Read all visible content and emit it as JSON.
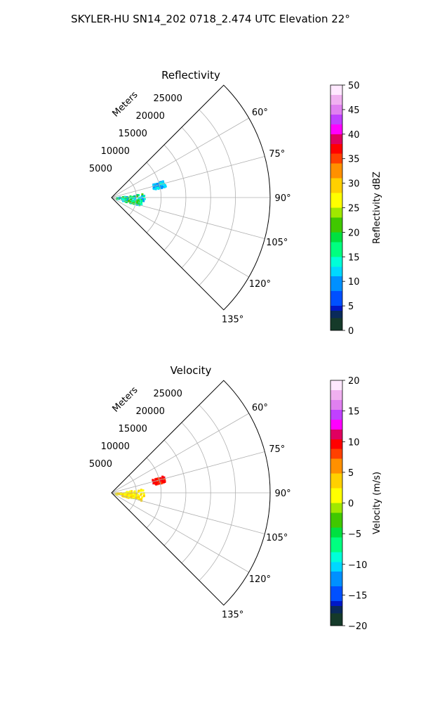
{
  "figure": {
    "suptitle": "SKYLER-HU  SN14_202  0718_2.474 UTC Elevation 22°"
  },
  "chart_data": [
    {
      "type": "polar-sector",
      "title": "Reflectivity",
      "radial_axis_label": "Meters",
      "radial_ticks": [
        5000,
        10000,
        15000,
        20000,
        25000
      ],
      "radial_tick_labels": [
        "5000",
        "10000",
        "15000",
        "20000",
        "25000"
      ],
      "radial_range": [
        0,
        32000
      ],
      "theta_range_deg": [
        45,
        135
      ],
      "theta_ticks_deg": [
        60,
        75,
        90,
        105,
        120,
        135
      ],
      "theta_tick_labels": [
        "60°",
        "75°",
        "90°",
        "105°",
        "120°",
        "135°"
      ],
      "grid": true,
      "colorbar": {
        "label": "Reflectivity dBZ",
        "min": 0,
        "max": 50,
        "ticks": [
          0,
          5,
          10,
          15,
          20,
          25,
          30,
          35,
          40,
          45,
          50
        ],
        "tick_labels": [
          "0",
          "5",
          "10",
          "15",
          "20",
          "25",
          "30",
          "35",
          "40",
          "45",
          "50"
        ],
        "stops": [
          [
            0,
            "#000a4a"
          ],
          [
            0.05,
            "#153a2a"
          ],
          [
            0.08,
            "#0a2a5a"
          ],
          [
            0.1,
            "#0018c8"
          ],
          [
            0.16,
            "#0050ff"
          ],
          [
            0.22,
            "#0090ff"
          ],
          [
            0.26,
            "#00d8ff"
          ],
          [
            0.3,
            "#00ffd8"
          ],
          [
            0.36,
            "#00ff80"
          ],
          [
            0.4,
            "#00e040"
          ],
          [
            0.46,
            "#40c800"
          ],
          [
            0.5,
            "#a0e800"
          ],
          [
            0.56,
            "#ffff00"
          ],
          [
            0.62,
            "#ffd000"
          ],
          [
            0.68,
            "#ff9000"
          ],
          [
            0.72,
            "#ff4000"
          ],
          [
            0.76,
            "#ff0000"
          ],
          [
            0.8,
            "#e00060"
          ],
          [
            0.84,
            "#ff00ff"
          ],
          [
            0.88,
            "#c040ff"
          ],
          [
            0.92,
            "#e080f0"
          ],
          [
            0.96,
            "#f0b0f0"
          ],
          [
            1.0,
            "#ffe8ff"
          ]
        ]
      },
      "echo_regions": [
        {
          "r_range": [
            8500,
            11000
          ],
          "theta_range_deg": [
            71,
            78
          ],
          "value_range": [
            10,
            14
          ]
        },
        {
          "r_range": [
            600,
            6500
          ],
          "theta_range_deg": [
            82,
            96
          ],
          "value_range": [
            8,
            22
          ]
        },
        {
          "r_range": [
            2000,
            6000
          ],
          "theta_range_deg": [
            94,
            104
          ],
          "value_range": [
            10,
            22
          ]
        }
      ]
    },
    {
      "type": "polar-sector",
      "title": "Velocity",
      "radial_axis_label": "Meters",
      "radial_ticks": [
        5000,
        10000,
        15000,
        20000,
        25000
      ],
      "radial_tick_labels": [
        "5000",
        "10000",
        "15000",
        "20000",
        "25000"
      ],
      "radial_range": [
        0,
        32000
      ],
      "theta_range_deg": [
        45,
        135
      ],
      "theta_ticks_deg": [
        60,
        75,
        90,
        105,
        120,
        135
      ],
      "theta_tick_labels": [
        "60°",
        "75°",
        "90°",
        "105°",
        "120°",
        "135°"
      ],
      "grid": true,
      "colorbar": {
        "label": "Velocity (m/s)",
        "min": -20,
        "max": 20,
        "ticks": [
          -20,
          -15,
          -10,
          -5,
          0,
          5,
          10,
          15,
          20
        ],
        "tick_labels": [
          "−20",
          "−15",
          "−10",
          "−5",
          "0",
          "5",
          "10",
          "15",
          "20"
        ],
        "stops": [
          [
            0,
            "#000a4a"
          ],
          [
            0.05,
            "#153a2a"
          ],
          [
            0.08,
            "#0a2a5a"
          ],
          [
            0.1,
            "#0018c8"
          ],
          [
            0.16,
            "#0050ff"
          ],
          [
            0.22,
            "#0090ff"
          ],
          [
            0.26,
            "#00d8ff"
          ],
          [
            0.3,
            "#00ffd8"
          ],
          [
            0.36,
            "#00ff80"
          ],
          [
            0.4,
            "#00e040"
          ],
          [
            0.46,
            "#40c800"
          ],
          [
            0.5,
            "#a0e800"
          ],
          [
            0.56,
            "#ffff00"
          ],
          [
            0.62,
            "#ffd000"
          ],
          [
            0.68,
            "#ff9000"
          ],
          [
            0.72,
            "#ff4000"
          ],
          [
            0.76,
            "#ff0000"
          ],
          [
            0.8,
            "#e00060"
          ],
          [
            0.84,
            "#ff00ff"
          ],
          [
            0.88,
            "#c040ff"
          ],
          [
            0.92,
            "#e080f0"
          ],
          [
            0.96,
            "#f0b0f0"
          ],
          [
            1.0,
            "#ffe8ff"
          ]
        ]
      },
      "echo_regions": [
        {
          "r_range": [
            8500,
            11000
          ],
          "theta_range_deg": [
            71,
            78
          ],
          "value_range": [
            8,
            11
          ]
        },
        {
          "r_range": [
            600,
            6500
          ],
          "theta_range_deg": [
            82,
            96
          ],
          "value_range": [
            0,
            4
          ]
        },
        {
          "r_range": [
            2000,
            6000
          ],
          "theta_range_deg": [
            94,
            104
          ],
          "value_range": [
            1,
            4
          ]
        }
      ]
    }
  ]
}
